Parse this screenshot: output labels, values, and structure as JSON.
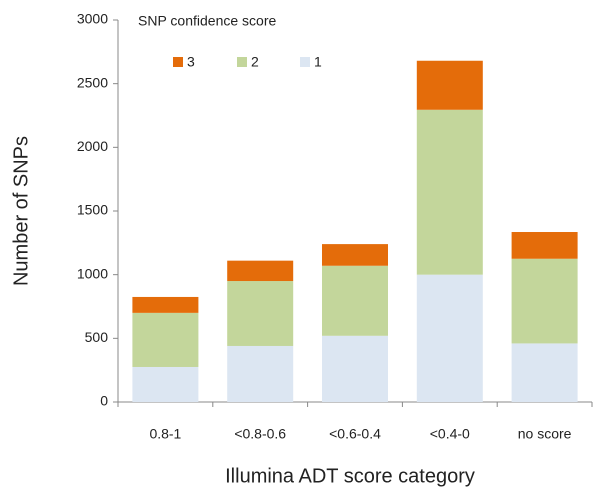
{
  "chart_data": {
    "type": "stacked_bar",
    "legend_title": "SNP confidence score",
    "x_label": "Illumina ADT score category",
    "y_label": "Number of SNPs",
    "categories": [
      "0.8-1",
      "<0.8-0.6",
      "<0.6-0.4",
      "<0.4-0",
      "no score"
    ],
    "series": [
      {
        "name": "1",
        "color": "#dce6f2",
        "values": [
          275,
          440,
          520,
          1000,
          460
        ]
      },
      {
        "name": "2",
        "color": "#c3d69b",
        "values": [
          425,
          510,
          550,
          1295,
          665
        ]
      },
      {
        "name": "3",
        "color": "#e46c0a",
        "values": [
          125,
          160,
          170,
          385,
          210
        ]
      }
    ],
    "ylim": [
      0,
      3000
    ],
    "yticks": [
      0,
      500,
      1000,
      1500,
      2000,
      2500,
      3000
    ],
    "grid": false,
    "legend": "top-left"
  }
}
